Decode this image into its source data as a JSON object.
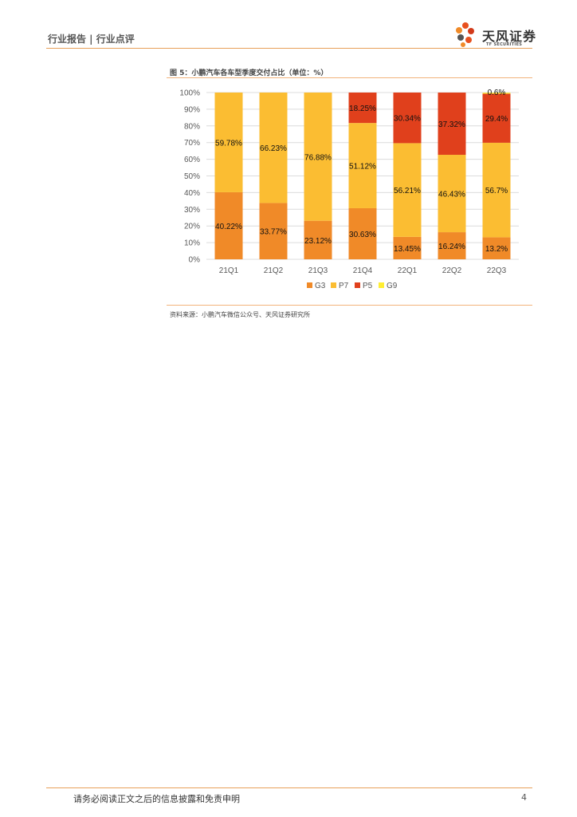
{
  "header": {
    "left_text": "行业报告 | 行业点评",
    "logo_cn": "天风证券",
    "logo_en": "TF SECURITIES"
  },
  "figure": {
    "title": "图 5：小鹏汽车各车型季度交付占比（单位：%）",
    "source": "资料来源：小鹏汽车微信公众号、天风证券研究所"
  },
  "chart_data": {
    "type": "bar",
    "stacked": true,
    "categories": [
      "21Q1",
      "21Q2",
      "21Q3",
      "21Q4",
      "22Q1",
      "22Q2",
      "22Q3"
    ],
    "ylim": [
      0,
      100
    ],
    "yticks": [
      "0%",
      "10%",
      "20%",
      "30%",
      "40%",
      "50%",
      "60%",
      "70%",
      "80%",
      "90%",
      "100%"
    ],
    "grid": true,
    "legend": "bottom",
    "series": [
      {
        "name": "G3",
        "color": "#f08a28",
        "values": [
          40.22,
          33.77,
          23.12,
          30.63,
          13.45,
          16.24,
          13.2
        ],
        "labels": [
          "40.22%",
          "33.77%",
          "23.12%",
          "30.63%",
          "13.45%",
          "16.24%",
          "13.2%"
        ]
      },
      {
        "name": "P7",
        "color": "#fbbd32",
        "values": [
          59.78,
          66.23,
          76.88,
          51.12,
          56.21,
          46.43,
          56.7
        ],
        "labels": [
          "59.78%",
          "66.23%",
          "76.88%",
          "51.12%",
          "56.21%",
          "46.43%",
          "56.7%"
        ]
      },
      {
        "name": "P5",
        "color": "#e0401c",
        "values": [
          0,
          0,
          0,
          18.25,
          30.34,
          37.32,
          29.4
        ],
        "labels": [
          "",
          "",
          "",
          "18.25%",
          "30.34%",
          "37.32%",
          "29.4%"
        ]
      },
      {
        "name": "G9",
        "color": "#ffee33",
        "values": [
          0,
          0,
          0,
          0,
          0,
          0,
          0.6
        ],
        "labels": [
          "",
          "",
          "",
          "",
          "",
          "",
          "0.6%"
        ]
      }
    ]
  },
  "footer": {
    "disclaimer": "请务必阅读正文之后的信息披露和免责申明",
    "page": "4"
  }
}
